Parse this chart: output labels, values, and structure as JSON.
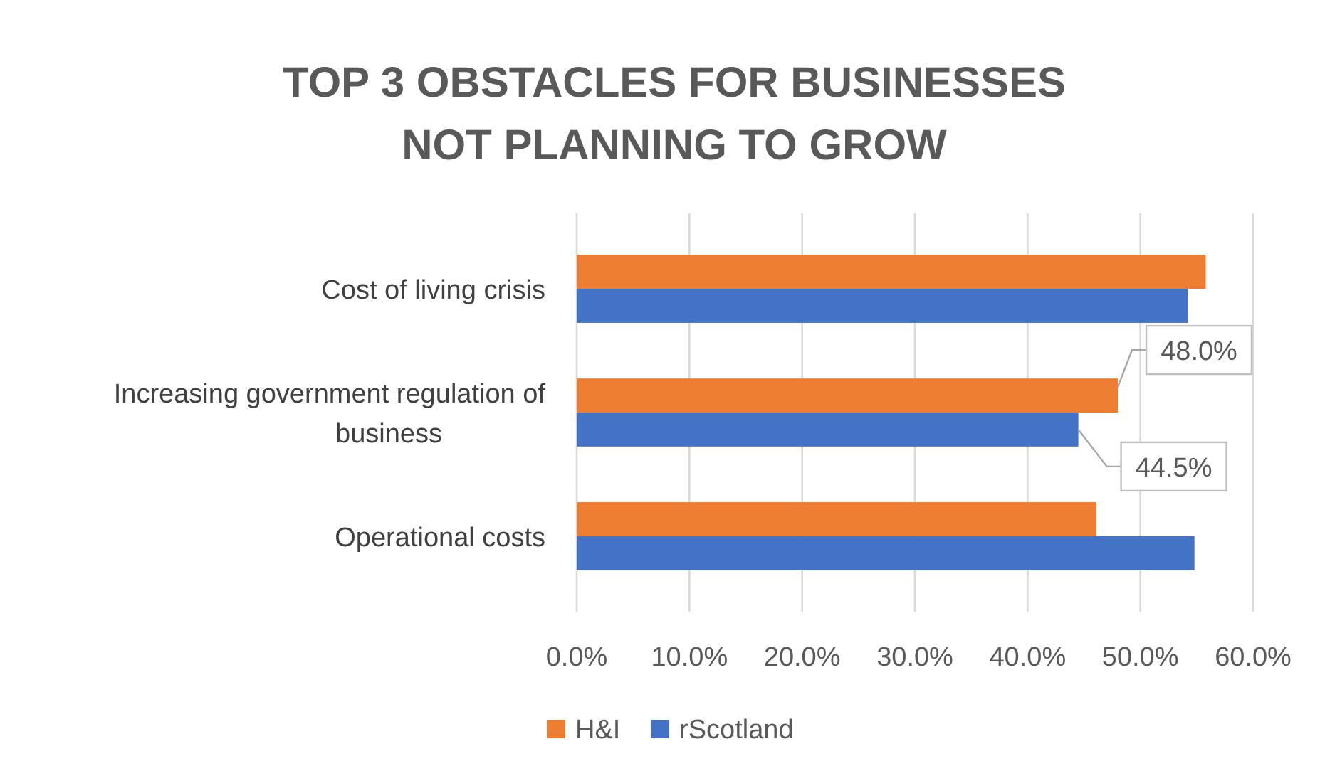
{
  "chart_data": {
    "type": "bar",
    "orientation": "horizontal",
    "title": "TOP 3 OBSTACLES FOR BUSINESSES NOT PLANNING TO GROW",
    "categories": [
      "Cost of living crisis",
      "Increasing government regulation of business",
      "Operational costs"
    ],
    "series": [
      {
        "name": "H&I",
        "color": "#ed7d31",
        "values": [
          55.8,
          48.0,
          46.1
        ],
        "value_labels": [
          null,
          "48.0%",
          null
        ]
      },
      {
        "name": "rScotland",
        "color": "#4472c4",
        "values": [
          54.2,
          44.5,
          54.8
        ],
        "value_labels": [
          null,
          "44.5%",
          null
        ]
      }
    ],
    "xlim": [
      0,
      60
    ],
    "xticks": [
      {
        "value": 0,
        "label": "0.0%"
      },
      {
        "value": 10,
        "label": "10.0%"
      },
      {
        "value": 20,
        "label": "20.0%"
      },
      {
        "value": 30,
        "label": "30.0%"
      },
      {
        "value": 40,
        "label": "40.0%"
      },
      {
        "value": 50,
        "label": "50.0%"
      },
      {
        "value": 60,
        "label": "60.0%"
      }
    ],
    "grid": "x",
    "legend": "bottom"
  }
}
